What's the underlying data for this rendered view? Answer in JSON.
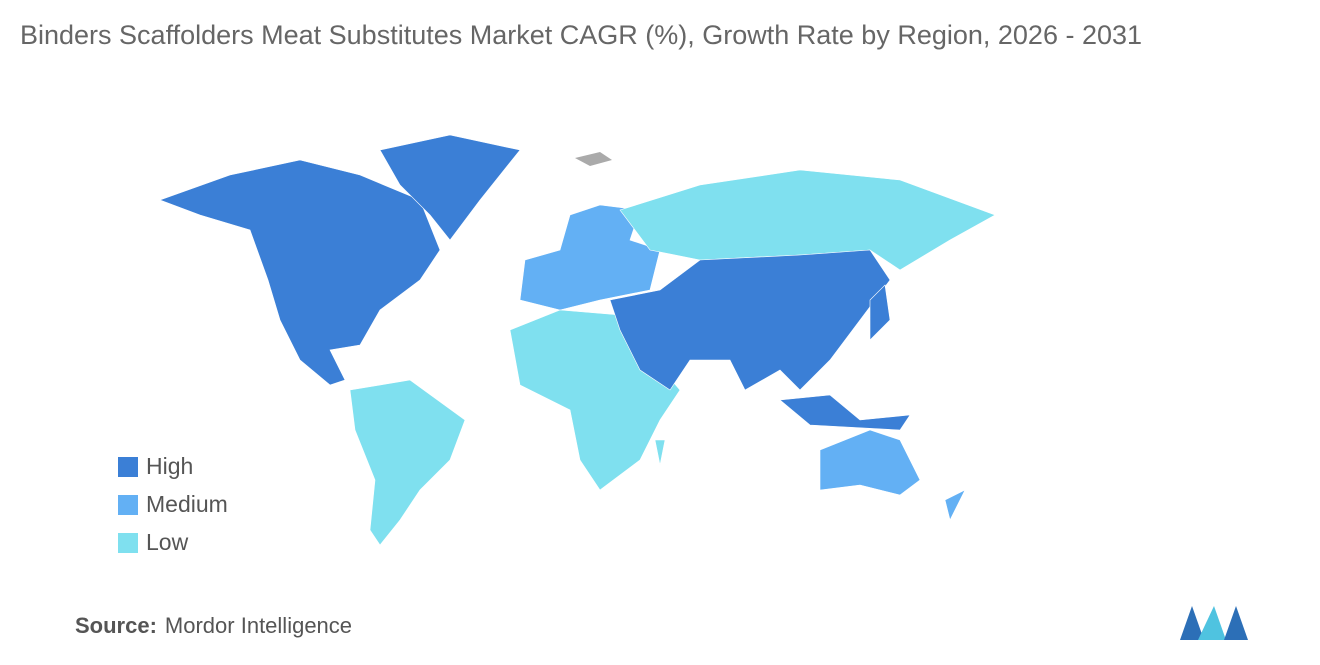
{
  "title": "Binders Scaffolders Meat Substitutes Market CAGR (%), Growth Rate by Region, 2026 - 2031",
  "legend": [
    {
      "label": "High",
      "color": "#3b7fd6"
    },
    {
      "label": "Medium",
      "color": "#63b0f4"
    },
    {
      "label": "Low",
      "color": "#7fe0ef"
    }
  ],
  "source": {
    "label": "Source:",
    "text": "Mordor Intelligence"
  }
}
